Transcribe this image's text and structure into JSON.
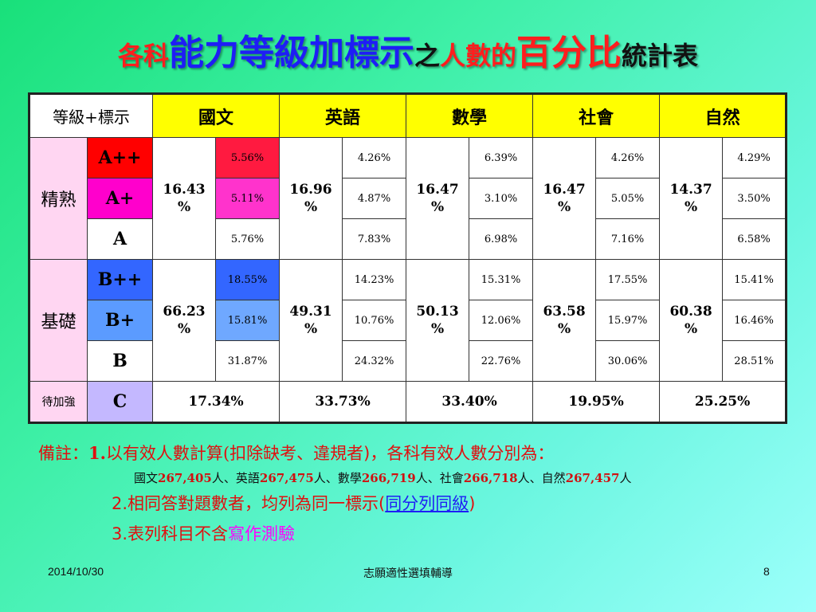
{
  "title": {
    "p1": "各科",
    "p2": "能力等級加標示",
    "p3": "之",
    "p4": "人數的",
    "p5": "百分比",
    "p6": "統計表"
  },
  "table": {
    "corner": "等級+標示",
    "subjects": [
      "國文",
      "英語",
      "數學",
      "社會",
      "自然"
    ],
    "groups": {
      "proficient": "精熟",
      "basic": "基礎",
      "improve": "待加強"
    },
    "levels": [
      "A++",
      "A+",
      "A",
      "B++",
      "B+",
      "B",
      "C"
    ],
    "proficient_totals": [
      "16.43",
      "16.96",
      "16.47",
      "16.47",
      "14.37"
    ],
    "basic_totals": [
      "66.23",
      "49.31",
      "50.13",
      "63.58",
      "60.38"
    ],
    "pct_sign": "%",
    "rows": {
      "A++": [
        "5.56%",
        "4.26%",
        "6.39%",
        "4.26%",
        "4.29%"
      ],
      "A+": [
        "5.11%",
        "4.87%",
        "3.10%",
        "5.05%",
        "3.50%"
      ],
      "A": [
        "5.76%",
        "7.83%",
        "6.98%",
        "7.16%",
        "6.58%"
      ],
      "B++": [
        "18.55%",
        "14.23%",
        "15.31%",
        "17.55%",
        "15.41%"
      ],
      "B+": [
        "15.81%",
        "10.76%",
        "12.06%",
        "15.97%",
        "16.46%"
      ],
      "B": [
        "31.87%",
        "24.32%",
        "22.76%",
        "30.06%",
        "28.51%"
      ]
    },
    "c_values": [
      "17.34%",
      "33.73%",
      "33.40%",
      "19.95%",
      "25.25%"
    ]
  },
  "notes": {
    "n1_prefix": "備註：",
    "n1_num": "1.",
    "n1_a": "以有效人數計算",
    "n1_b": "(",
    "n1_c": "扣除缺考、違規者",
    "n1_d": ")，各科有效人數分別為：",
    "counts": [
      {
        "subject": "國文",
        "value": "267,405",
        "unit": "人"
      },
      {
        "subject": "英語",
        "value": "267,475",
        "unit": "人"
      },
      {
        "subject": "數學",
        "value": "266,719",
        "unit": "人"
      },
      {
        "subject": "社會",
        "value": "266,718",
        "unit": "人"
      },
      {
        "subject": "自然",
        "value": "267,457",
        "unit": "人"
      }
    ],
    "sep": "、",
    "n2_a": "2.相同答對題數者，均列為同一標示(",
    "n2_hl": "同分列同級",
    "n2_b": ")",
    "n3_a": "3.表列科目不含",
    "n3_hl": "寫作測驗"
  },
  "footer": {
    "date": "2014/10/30",
    "center": "志願適性選填輔導",
    "page": "8"
  }
}
